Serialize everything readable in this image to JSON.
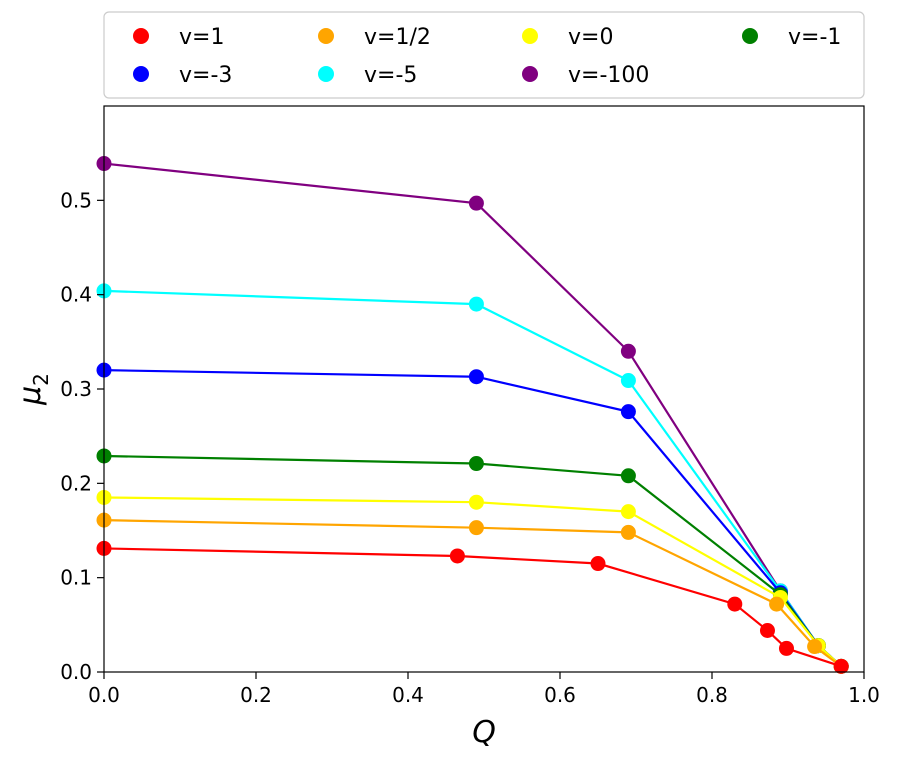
{
  "chart_data": {
    "type": "line",
    "title": "",
    "xlabel": "Q",
    "ylabel": "μ",
    "ylabel_sub": "2",
    "xlim": [
      0.0,
      1.0
    ],
    "ylim": [
      0.0,
      0.6
    ],
    "xticks": [
      0.0,
      0.2,
      0.4,
      0.6,
      0.8,
      1.0
    ],
    "xtick_labels": [
      "0.0",
      "0.2",
      "0.4",
      "0.6",
      "0.8",
      "1.0"
    ],
    "yticks": [
      0.0,
      0.1,
      0.2,
      0.3,
      0.4,
      0.5
    ],
    "ytick_labels": [
      "0.0",
      "0.1",
      "0.2",
      "0.3",
      "0.4",
      "0.5"
    ],
    "grid": false,
    "legend_position": "top",
    "legend_columns": 4,
    "series": [
      {
        "name": "v=1",
        "color": "#ff0000",
        "x": [
          0.0,
          0.465,
          0.65,
          0.83,
          0.873,
          0.898,
          0.97
        ],
        "y": [
          0.131,
          0.123,
          0.115,
          0.072,
          0.044,
          0.025,
          0.006
        ]
      },
      {
        "name": "v=1/2",
        "color": "#ffa500",
        "x": [
          0.0,
          0.49,
          0.69,
          0.885,
          0.935,
          0.97
        ],
        "y": [
          0.161,
          0.153,
          0.148,
          0.072,
          0.027,
          0.006
        ]
      },
      {
        "name": "v=0",
        "color": "#ffff00",
        "x": [
          0.0,
          0.49,
          0.69,
          0.89,
          0.94,
          0.97
        ],
        "y": [
          0.185,
          0.18,
          0.17,
          0.079,
          0.028,
          0.006
        ]
      },
      {
        "name": "v=-1",
        "color": "#008000",
        "x": [
          0.0,
          0.49,
          0.69,
          0.89,
          0.94,
          0.97
        ],
        "y": [
          0.229,
          0.221,
          0.208,
          0.082,
          0.028,
          0.006
        ]
      },
      {
        "name": "v=-3",
        "color": "#0000ff",
        "x": [
          0.0,
          0.49,
          0.69,
          0.89,
          0.94,
          0.97
        ],
        "y": [
          0.32,
          0.313,
          0.276,
          0.084,
          0.028,
          0.006
        ]
      },
      {
        "name": "v=-5",
        "color": "#00ffff",
        "x": [
          0.0,
          0.49,
          0.69,
          0.89,
          0.94,
          0.97
        ],
        "y": [
          0.404,
          0.39,
          0.309,
          0.086,
          0.028,
          0.006
        ]
      },
      {
        "name": "v=-100",
        "color": "#800080",
        "x": [
          0.0,
          0.49,
          0.69,
          0.89,
          0.94,
          0.97
        ],
        "y": [
          0.539,
          0.497,
          0.34,
          0.086,
          0.028,
          0.006
        ]
      }
    ],
    "legend_order": [
      "v=1",
      "v=1/2",
      "v=0",
      "v=-1",
      "v=-3",
      "v=-5",
      "v=-100"
    ],
    "draw_order": [
      "v=-100",
      "v=-5",
      "v=-3",
      "v=-1",
      "v=0",
      "v=1/2",
      "v=1"
    ]
  }
}
